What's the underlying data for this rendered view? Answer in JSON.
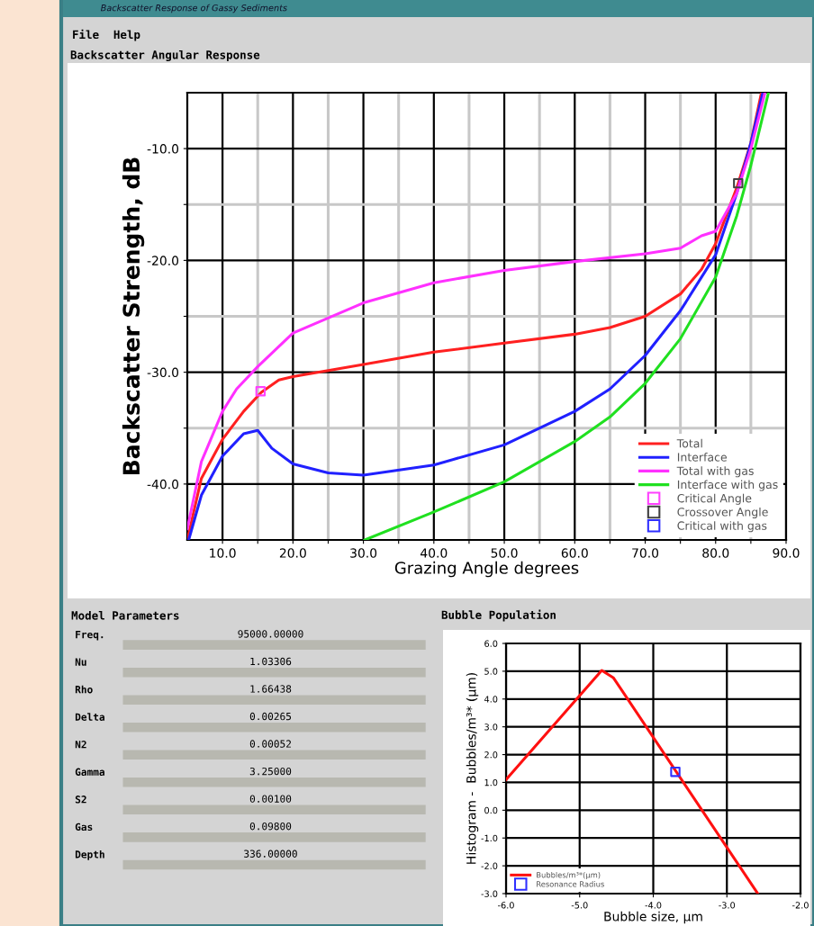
{
  "chart_data": [
    {
      "type": "other",
      "title": "Backscatter Response of Gassy Sediments",
      "annotations": [
        "File",
        "Help"
      ]
    },
    {
      "type": "line",
      "title": "Backscatter Angular Response",
      "xlabel": "Grazing Angle degrees",
      "ylabel": "Backscatter Strength, dB",
      "xlim": [
        5,
        90
      ],
      "ylim": [
        -45,
        -5
      ],
      "xticks": [
        {
          "value": 10,
          "label": "10.0"
        },
        {
          "value": 15,
          "label": null
        },
        {
          "value": 20,
          "label": "20.0"
        },
        {
          "value": 25,
          "label": null
        },
        {
          "value": 30,
          "label": "30.0"
        },
        {
          "value": 35,
          "label": null
        },
        {
          "value": 40,
          "label": "40.0"
        },
        {
          "value": 45,
          "label": null
        },
        {
          "value": 50,
          "label": "50.0"
        },
        {
          "value": 55,
          "label": null
        },
        {
          "value": 60,
          "label": "60.0"
        },
        {
          "value": 65,
          "label": null
        },
        {
          "value": 70,
          "label": "70.0"
        },
        {
          "value": 75,
          "label": null
        },
        {
          "value": 80,
          "label": "80.0"
        },
        {
          "value": 85,
          "label": null
        },
        {
          "value": 90,
          "label": "90.0"
        }
      ],
      "yticks": [
        {
          "value": -40,
          "label": "-40.0"
        },
        {
          "value": -35,
          "label": null
        },
        {
          "value": -30,
          "label": "-30.0"
        },
        {
          "value": -25,
          "label": null
        },
        {
          "value": -20,
          "label": "-20.0"
        },
        {
          "value": -15,
          "label": null
        },
        {
          "value": -10,
          "label": "-10.0"
        }
      ],
      "grid": true,
      "legend": "bottom right",
      "marker": "none",
      "line_style": "solid",
      "series": [
        {
          "name": "Total",
          "color": "#ff2020",
          "x": [
            5,
            7,
            10,
            13,
            15.5,
            18,
            20,
            30,
            40,
            50,
            60,
            65,
            70,
            75,
            78,
            80,
            83,
            85,
            86.5
          ],
          "values": [
            -45,
            -39.5,
            -36,
            -33.5,
            -31.8,
            -30.7,
            -30.4,
            -29.3,
            -28.2,
            -27.4,
            -26.6,
            -26,
            -25,
            -23,
            -20.8,
            -18.5,
            -13.5,
            -9.5,
            -5
          ]
        },
        {
          "name": "Interface",
          "color": "#2020ff",
          "x": [
            5.2,
            7,
            10,
            13,
            15,
            17,
            20,
            25,
            30,
            40,
            50,
            60,
            65,
            70,
            75,
            80,
            83,
            85,
            86.7
          ],
          "values": [
            -45,
            -41,
            -37.5,
            -35.5,
            -35.2,
            -36.8,
            -38.2,
            -39,
            -39.2,
            -38.3,
            -36.5,
            -33.5,
            -31.5,
            -28.5,
            -24.5,
            -19.5,
            -14,
            -9.5,
            -5
          ]
        },
        {
          "name": "Total with gas",
          "color": "#ff30ff",
          "x": [
            5,
            7,
            10,
            12,
            15,
            20,
            30,
            40,
            50,
            60,
            70,
            75,
            78,
            80,
            83,
            85,
            87
          ],
          "values": [
            -44,
            -38,
            -33.5,
            -31.5,
            -29.5,
            -26.5,
            -23.8,
            -22,
            -20.9,
            -20.1,
            -19.4,
            -18.9,
            -17.8,
            -17.4,
            -14,
            -10,
            -5
          ]
        },
        {
          "name": "Interface with gas",
          "color": "#20e020",
          "x": [
            30.2,
            40,
            50,
            60,
            65,
            70,
            75,
            80,
            83,
            85,
            87.5
          ],
          "values": [
            -45,
            -42.5,
            -39.8,
            -36.2,
            -34,
            -31,
            -27,
            -21.5,
            -16,
            -11.5,
            -5
          ]
        },
        {
          "name": "Critical Angle",
          "type": "scatter",
          "marker": "square",
          "color": "#ff40ff",
          "x": [
            15.4
          ],
          "values": [
            -31.7
          ]
        },
        {
          "name": "Crossover Angle",
          "type": "scatter",
          "marker": "square",
          "color": "#404040",
          "x": [
            83.2
          ],
          "values": [
            -13.1
          ]
        },
        {
          "name": "Critical with gas",
          "type": "scatter",
          "marker": "square",
          "color": "#3030ff"
        }
      ]
    },
    {
      "type": "other",
      "title": "Model Parameters",
      "categories": [
        "Freq.",
        "Nu",
        "Rho",
        "Delta",
        "N2",
        "Gamma",
        "S2",
        "Gas",
        "Depth"
      ],
      "value_labels": [
        "95000.00000",
        "1.03306",
        "1.66438",
        "0.00265",
        "0.00052",
        "3.25000",
        "0.00100",
        "0.09800",
        "336.00000"
      ]
    },
    {
      "type": "line",
      "title": "Bubble Population",
      "xlabel": "Bubble size, µm",
      "ylabel": "Histogram -  Bubbles/m³* (µm)",
      "xlim": [
        -6,
        -2
      ],
      "ylim": [
        -3,
        6
      ],
      "xticks": [
        {
          "value": -6,
          "label": "-6.0"
        },
        {
          "value": -5,
          "label": "-5.0"
        },
        {
          "value": -4,
          "label": "-4.0"
        },
        {
          "value": -3,
          "label": "-3.0"
        },
        {
          "value": -2,
          "label": "-2.0"
        }
      ],
      "yticks": [
        {
          "value": -3,
          "label": "-3.0"
        },
        {
          "value": -2,
          "label": "-2.0"
        },
        {
          "value": -1,
          "label": "-1.0"
        },
        {
          "value": 0,
          "label": "0.0"
        },
        {
          "value": 1,
          "label": "1.0"
        },
        {
          "value": 2,
          "label": "2.0"
        },
        {
          "value": 3,
          "label": "3.0"
        },
        {
          "value": 4,
          "label": "4.0"
        },
        {
          "value": 5,
          "label": "5.0"
        },
        {
          "value": 6,
          "label": "6.0"
        }
      ],
      "grid": true,
      "legend": "bottom left",
      "marker": "none",
      "line_style": "solid",
      "series": [
        {
          "name": "Bubbles/m³*(µm)",
          "color": "#ff1010",
          "x": [
            -6,
            -4.7,
            -4.54,
            -2.58
          ],
          "values": [
            1.1,
            5.03,
            4.76,
            -3
          ]
        },
        {
          "name": "Resonance Radius",
          "type": "scatter",
          "marker": "square",
          "color": "#3030ff",
          "x": [
            -3.7
          ],
          "values": [
            1.38
          ]
        }
      ]
    }
  ]
}
